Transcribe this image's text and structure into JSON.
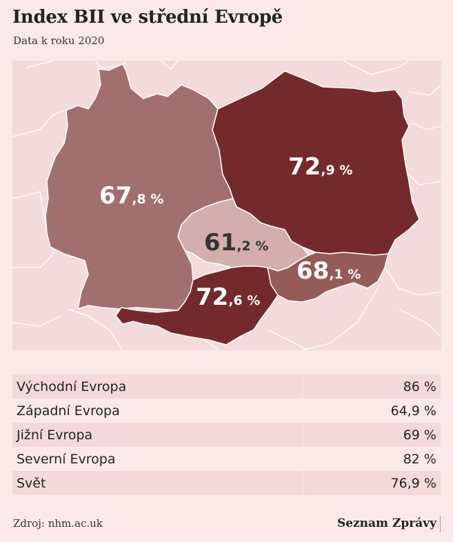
{
  "title": "Index BII ve střední Evropě",
  "subtitle": "Data k roku 2020",
  "map": {
    "regions": [
      {
        "id": "germany",
        "int": "67",
        "dec": ",8 %",
        "value": 67.8,
        "color": "#a1706e",
        "label_color": "#ffffff"
      },
      {
        "id": "poland",
        "int": "72",
        "dec": ",9 %",
        "value": 72.9,
        "color": "#742a2c",
        "label_color": "#ffffff"
      },
      {
        "id": "czechia",
        "int": "61",
        "dec": ",2 %",
        "value": 61.2,
        "color": "#d3aeac",
        "label_color": "#333333"
      },
      {
        "id": "slovakia",
        "int": "68",
        "dec": ",1 %",
        "value": 68.1,
        "color": "#955b59",
        "label_color": "#ffffff"
      },
      {
        "id": "austria",
        "int": "72",
        "dec": ",6 %",
        "value": 72.6,
        "color": "#742a2c",
        "label_color": "#ffffff"
      }
    ],
    "background_land_color": "#f3dadb",
    "border_color": "#ffffff"
  },
  "table": {
    "rows": [
      {
        "name": "Východní Evropa",
        "value": "86 %"
      },
      {
        "name": "Západní Evropa",
        "value": "64,9 %"
      },
      {
        "name": "Jižní Evropa",
        "value": "69 %"
      },
      {
        "name": "Severní Evropa",
        "value": "82 %"
      },
      {
        "name": "Svět",
        "value": "76,9 %"
      }
    ]
  },
  "source": "Zdroj: nhm.ac.uk",
  "brand": "Seznam Zprávy"
}
